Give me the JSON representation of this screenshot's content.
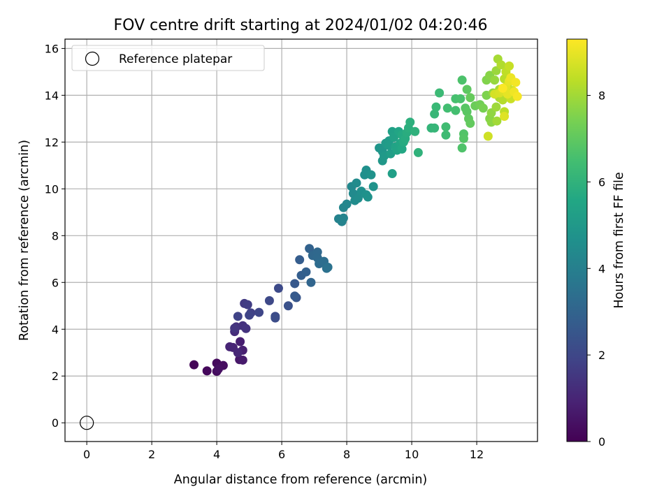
{
  "chart_data": {
    "type": "scatter",
    "title": "FOV centre drift starting at 2024/01/02 04:20:46",
    "xlabel": "Angular distance from reference (arcmin)",
    "ylabel": "Rotation from reference (arcmin)",
    "xlim": [
      -0.67,
      13.87
    ],
    "ylim": [
      -0.8,
      16.4
    ],
    "xticks": [
      "0",
      "2",
      "4",
      "6",
      "8",
      "10",
      "12"
    ],
    "yticks": [
      "0",
      "2",
      "4",
      "6",
      "8",
      "10",
      "12",
      "14",
      "16"
    ],
    "grid": true,
    "legend": {
      "placement": "top-left",
      "entries": [
        {
          "label": "Reference platepar",
          "marker": "open-circle"
        }
      ]
    },
    "reference_point": {
      "x": 0,
      "y": 0
    },
    "colorbar": {
      "label": "Hours from first FF file",
      "colormap": "viridis",
      "range": [
        0,
        9.3
      ],
      "ticks": [
        "0",
        "2",
        "4",
        "6",
        "8"
      ]
    },
    "series": [
      {
        "points": [
          [
            3.3,
            2.48,
            0.1
          ],
          [
            3.7,
            2.22,
            0.2
          ],
          [
            4.0,
            2.55,
            0.25
          ],
          [
            4.0,
            2.2,
            0.3
          ],
          [
            4.2,
            2.45,
            0.35
          ],
          [
            4.05,
            2.3,
            0.4
          ],
          [
            4.7,
            2.7,
            0.6
          ],
          [
            4.8,
            2.68,
            0.7
          ],
          [
            4.72,
            3.47,
            0.8
          ],
          [
            4.8,
            3.1,
            0.85
          ],
          [
            4.5,
            3.22,
            0.95
          ],
          [
            4.4,
            3.25,
            1.0
          ],
          [
            4.65,
            3.0,
            1.05
          ],
          [
            4.55,
            3.9,
            1.2
          ],
          [
            4.6,
            4.1,
            1.3
          ],
          [
            4.8,
            4.15,
            1.35
          ],
          [
            4.9,
            4.03,
            1.4
          ],
          [
            4.55,
            4.05,
            1.45
          ],
          [
            4.85,
            5.1,
            1.6
          ],
          [
            4.95,
            5.05,
            1.7
          ],
          [
            5.05,
            4.7,
            1.8
          ],
          [
            4.65,
            4.55,
            1.85
          ],
          [
            5.0,
            4.6,
            1.9
          ],
          [
            5.3,
            4.72,
            1.95
          ],
          [
            5.62,
            5.22,
            2.05
          ],
          [
            5.9,
            5.75,
            2.1
          ],
          [
            5.8,
            4.55,
            2.15
          ],
          [
            5.8,
            4.48,
            2.2
          ],
          [
            6.2,
            5.0,
            2.35
          ],
          [
            6.45,
            5.35,
            2.5
          ],
          [
            6.4,
            5.95,
            2.6
          ],
          [
            6.4,
            5.42,
            2.65
          ],
          [
            6.55,
            6.97,
            2.75
          ],
          [
            6.6,
            6.3,
            2.8
          ],
          [
            6.75,
            6.45,
            2.85
          ],
          [
            6.85,
            7.45,
            2.95
          ],
          [
            6.9,
            6.0,
            3.05
          ],
          [
            6.95,
            7.15,
            3.1
          ],
          [
            7.1,
            7.3,
            3.15
          ],
          [
            7.1,
            7.05,
            3.2
          ],
          [
            7.15,
            6.8,
            3.3
          ],
          [
            7.3,
            6.9,
            3.35
          ],
          [
            7.38,
            6.6,
            3.45
          ],
          [
            7.42,
            6.65,
            3.5
          ],
          [
            7.75,
            8.72,
            4.1
          ],
          [
            7.85,
            8.6,
            4.15
          ],
          [
            7.9,
            8.75,
            4.2
          ],
          [
            7.9,
            9.2,
            4.25
          ],
          [
            8.0,
            9.35,
            4.3
          ],
          [
            8.15,
            10.1,
            4.35
          ],
          [
            8.2,
            9.8,
            4.4
          ],
          [
            8.3,
            10.25,
            4.45
          ],
          [
            8.25,
            9.5,
            4.5
          ],
          [
            8.35,
            9.6,
            4.55
          ],
          [
            8.45,
            9.9,
            4.6
          ],
          [
            8.55,
            10.6,
            4.62
          ],
          [
            8.6,
            10.8,
            4.65
          ],
          [
            8.6,
            9.75,
            4.7
          ],
          [
            8.65,
            9.65,
            4.72
          ],
          [
            8.75,
            10.6,
            4.75
          ],
          [
            8.82,
            10.1,
            4.78
          ],
          [
            9.0,
            11.75,
            4.85
          ],
          [
            9.1,
            11.6,
            4.9
          ],
          [
            9.1,
            11.2,
            4.95
          ],
          [
            9.15,
            11.4,
            5.0
          ],
          [
            9.2,
            11.95,
            5.05
          ],
          [
            9.3,
            12.05,
            5.1
          ],
          [
            9.3,
            11.85,
            5.15
          ],
          [
            9.35,
            11.5,
            5.2
          ],
          [
            9.4,
            10.65,
            5.25
          ],
          [
            9.4,
            12.45,
            5.3
          ],
          [
            9.45,
            12.2,
            5.35
          ],
          [
            9.5,
            11.8,
            5.4
          ],
          [
            9.55,
            11.65,
            5.45
          ],
          [
            9.6,
            12.45,
            5.5
          ],
          [
            9.65,
            11.95,
            5.55
          ],
          [
            9.7,
            11.7,
            5.6
          ],
          [
            9.7,
            12.3,
            5.65
          ],
          [
            9.75,
            12.0,
            5.7
          ],
          [
            9.8,
            12.15,
            5.75
          ],
          [
            9.85,
            12.4,
            5.8
          ],
          [
            9.9,
            12.6,
            5.85
          ],
          [
            9.95,
            12.85,
            5.9
          ],
          [
            10.1,
            12.45,
            5.95
          ],
          [
            10.2,
            11.55,
            6.0
          ],
          [
            10.6,
            12.6,
            6.1
          ],
          [
            10.7,
            12.6,
            6.15
          ],
          [
            10.7,
            13.2,
            6.2
          ],
          [
            10.75,
            13.5,
            6.25
          ],
          [
            10.85,
            14.1,
            6.3
          ],
          [
            11.05,
            12.3,
            6.35
          ],
          [
            11.05,
            12.65,
            6.4
          ],
          [
            11.1,
            13.45,
            6.45
          ],
          [
            11.35,
            13.35,
            6.5
          ],
          [
            11.35,
            13.85,
            6.55
          ],
          [
            11.5,
            13.85,
            6.6
          ],
          [
            11.55,
            14.65,
            6.65
          ],
          [
            11.55,
            11.75,
            6.7
          ],
          [
            11.6,
            12.35,
            6.75
          ],
          [
            11.6,
            12.15,
            6.8
          ],
          [
            11.65,
            13.45,
            6.85
          ],
          [
            11.7,
            13.3,
            6.9
          ],
          [
            11.7,
            14.25,
            6.95
          ],
          [
            11.75,
            13.0,
            7.0
          ],
          [
            11.8,
            12.8,
            7.05
          ],
          [
            11.8,
            13.9,
            7.1
          ],
          [
            11.95,
            13.55,
            7.2
          ],
          [
            12.1,
            13.6,
            7.3
          ],
          [
            12.2,
            13.45,
            7.4
          ],
          [
            12.3,
            14.0,
            7.5
          ],
          [
            12.3,
            14.65,
            7.55
          ],
          [
            12.4,
            13.0,
            7.6
          ],
          [
            12.4,
            14.85,
            7.65
          ],
          [
            12.45,
            12.85,
            7.7
          ],
          [
            12.45,
            13.25,
            7.75
          ],
          [
            12.5,
            14.1,
            7.8
          ],
          [
            12.55,
            14.65,
            7.85
          ],
          [
            12.6,
            15.05,
            7.9
          ],
          [
            12.6,
            13.5,
            7.95
          ],
          [
            12.62,
            12.9,
            8.0
          ],
          [
            12.65,
            15.55,
            8.05
          ],
          [
            12.7,
            14.25,
            8.1
          ],
          [
            12.7,
            13.9,
            8.15
          ],
          [
            12.75,
            15.3,
            8.2
          ],
          [
            12.8,
            13.8,
            8.25
          ],
          [
            12.85,
            14.7,
            8.3
          ],
          [
            12.85,
            13.3,
            8.35
          ],
          [
            12.9,
            15.0,
            8.4
          ],
          [
            12.95,
            14.45,
            8.45
          ],
          [
            13.0,
            15.25,
            8.5
          ],
          [
            13.05,
            13.85,
            8.55
          ],
          [
            13.1,
            14.2,
            8.6
          ],
          [
            12.35,
            12.25,
            8.62
          ],
          [
            12.55,
            14.05,
            8.7
          ],
          [
            12.7,
            14.1,
            8.75
          ],
          [
            12.8,
            14.2,
            8.8
          ],
          [
            12.85,
            13.1,
            8.85
          ],
          [
            12.9,
            14.35,
            8.9
          ],
          [
            12.95,
            14.05,
            8.95
          ],
          [
            13.0,
            14.6,
            9.0
          ],
          [
            13.05,
            14.75,
            9.05
          ],
          [
            13.15,
            14.15,
            9.1
          ],
          [
            13.2,
            14.55,
            9.15
          ],
          [
            13.25,
            13.95,
            9.2
          ],
          [
            12.8,
            14.3,
            9.25
          ]
        ]
      }
    ]
  }
}
